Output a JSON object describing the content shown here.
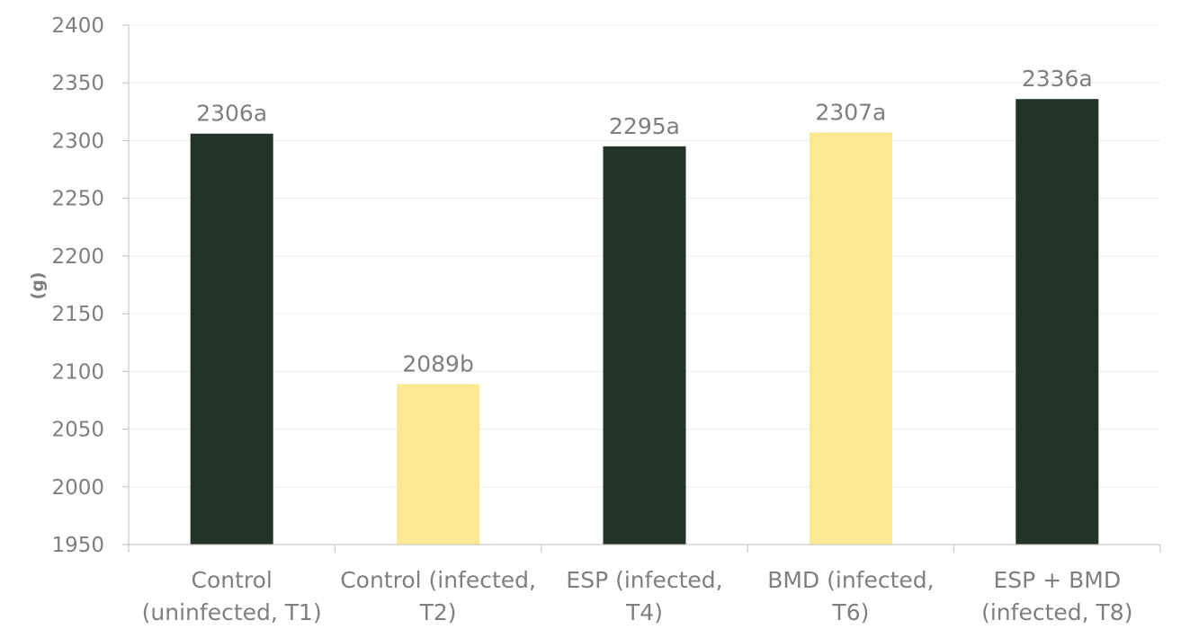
{
  "chart_data": {
    "type": "bar",
    "title": "",
    "xlabel": "",
    "ylabel": "(g)",
    "ylim": [
      1950,
      2400
    ],
    "yticks": [
      1950,
      2000,
      2050,
      2100,
      2150,
      2200,
      2250,
      2300,
      2350,
      2400
    ],
    "grid": true,
    "legend": "none",
    "categories": [
      [
        "Control",
        "(uninfected, T1)"
      ],
      [
        "Control (infected,",
        "T2)"
      ],
      [
        "ESP (infected,",
        "T4)"
      ],
      [
        "BMD (infected,",
        "T6)"
      ],
      [
        "ESP + BMD",
        "(infected, T8)"
      ]
    ],
    "values": [
      2306,
      2089,
      2295,
      2307,
      2336
    ],
    "data_labels": [
      "2306a",
      "2089b",
      "2295a",
      "2307a",
      "2336a"
    ],
    "bar_colors": [
      "#223328",
      "#fde991",
      "#223328",
      "#fde991",
      "#223328"
    ],
    "colors": {
      "axis": "#bfbfbf",
      "grid": "#ececec",
      "text": "#7f7f7f"
    }
  }
}
